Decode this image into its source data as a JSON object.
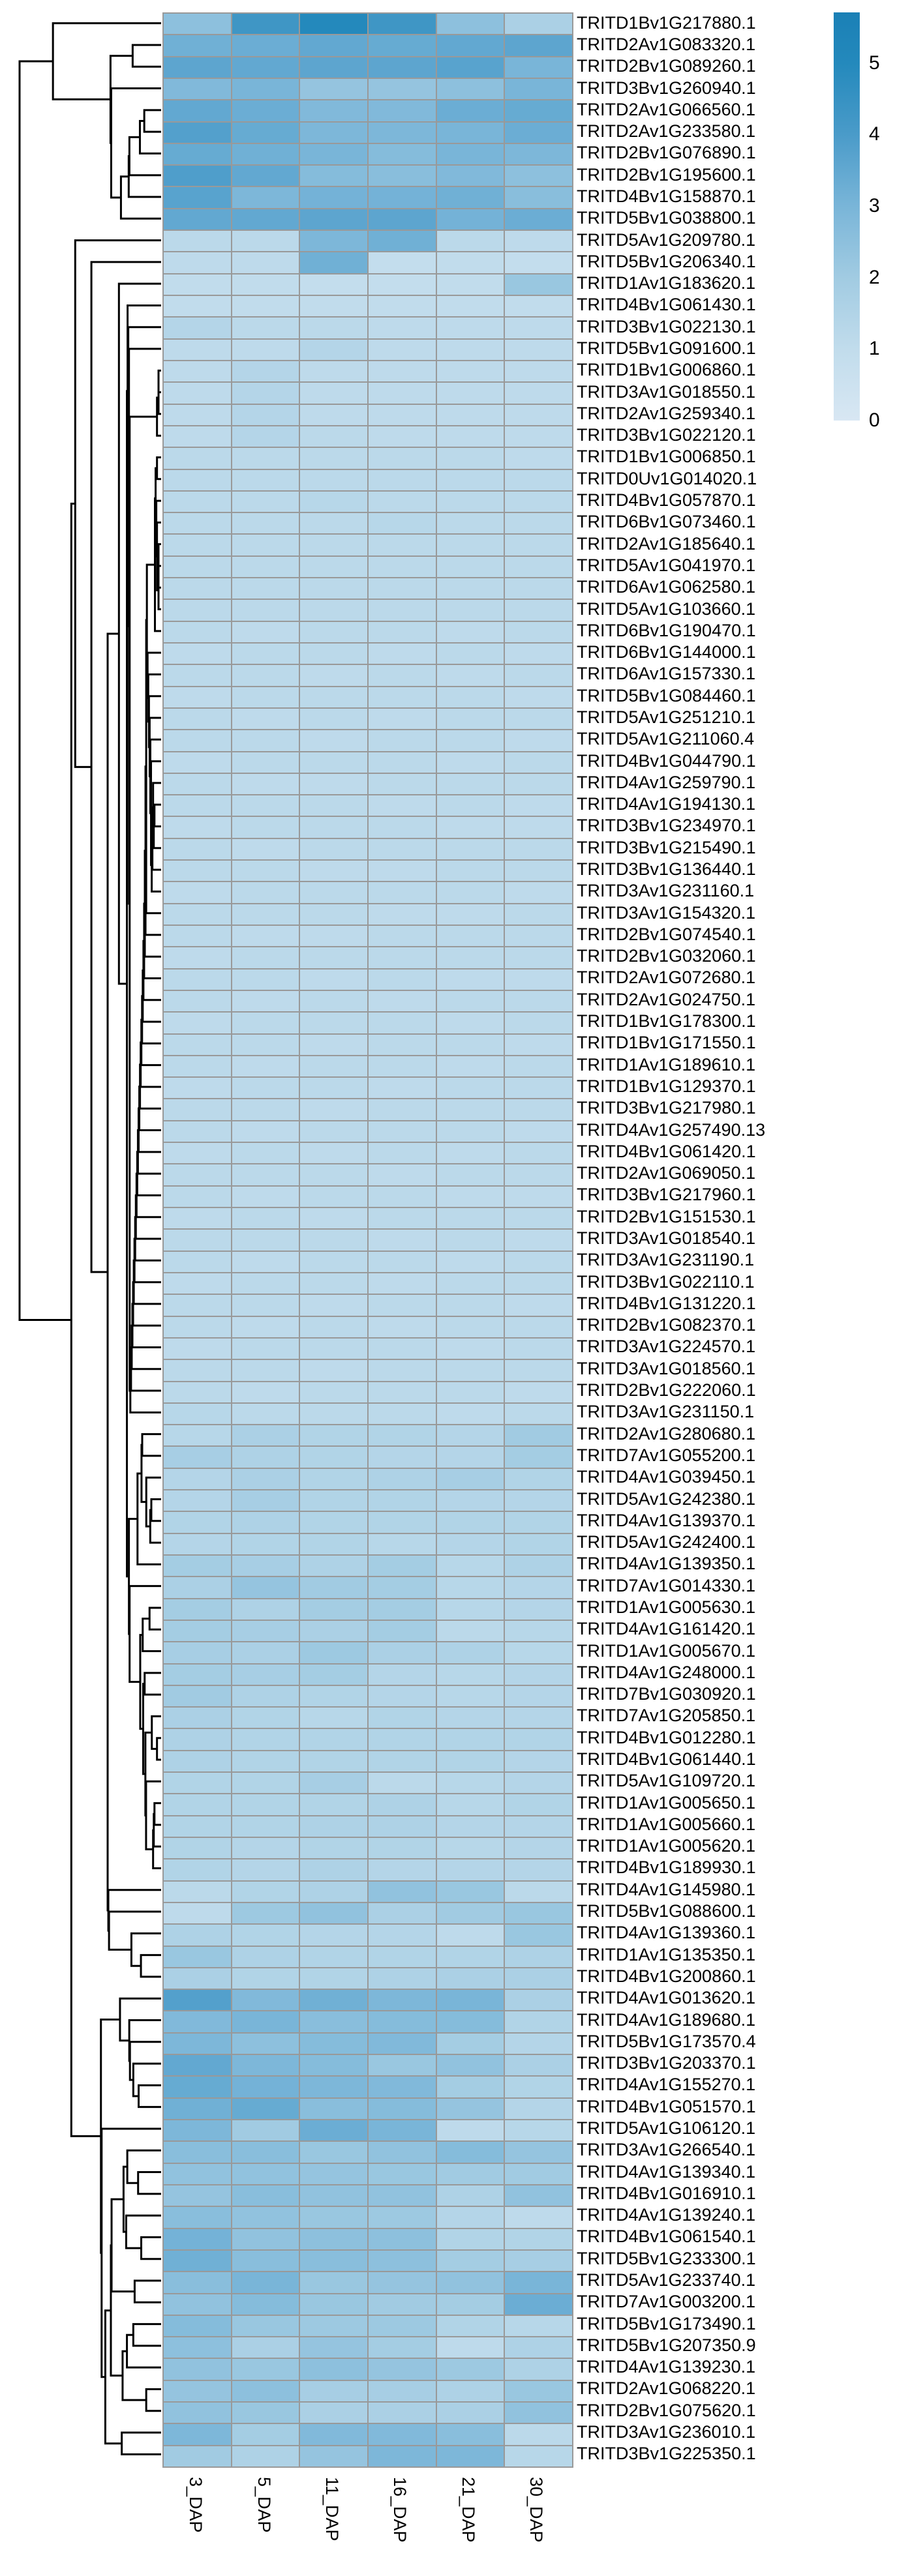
{
  "figure": {
    "kind": "seaborn-style clustermap screenshot",
    "background": "#ffffff",
    "grid_line_color": "#999999",
    "dendrogram_color": "#000000"
  },
  "chart_data": {
    "type": "heatmap",
    "title": "",
    "xlabel": "",
    "ylabel": "",
    "legend_position": "top-right",
    "x_tick_rotation": 90,
    "dendrogram_side": "left",
    "columns": [
      "3_DAP",
      "5_DAP",
      "11_DAP",
      "16_DAP",
      "21_DAP",
      "30_DAP"
    ],
    "rows": [
      "TRITD1Bv1G217880.1",
      "TRITD2Av1G083320.1",
      "TRITD2Bv1G089260.1",
      "TRITD3Bv1G260940.1",
      "TRITD2Av1G066560.1",
      "TRITD2Av1G233580.1",
      "TRITD2Bv1G076890.1",
      "TRITD2Bv1G195600.1",
      "TRITD4Bv1G158870.1",
      "TRITD5Bv1G038800.1",
      "TRITD5Av1G209780.1",
      "TRITD5Bv1G206340.1",
      "TRITD1Av1G183620.1",
      "TRITD4Bv1G061430.1",
      "TRITD3Bv1G022130.1",
      "TRITD5Bv1G091600.1",
      "TRITD1Bv1G006860.1",
      "TRITD3Av1G018550.1",
      "TRITD2Av1G259340.1",
      "TRITD3Bv1G022120.1",
      "TRITD1Bv1G006850.1",
      "TRITD0Uv1G014020.1",
      "TRITD4Bv1G057870.1",
      "TRITD6Bv1G073460.1",
      "TRITD2Av1G185640.1",
      "TRITD5Av1G041970.1",
      "TRITD6Av1G062580.1",
      "TRITD5Av1G103660.1",
      "TRITD6Bv1G190470.1",
      "TRITD6Bv1G144000.1",
      "TRITD6Av1G157330.1",
      "TRITD5Bv1G084460.1",
      "TRITD5Av1G251210.1",
      "TRITD5Av1G211060.4",
      "TRITD4Bv1G044790.1",
      "TRITD4Av1G259790.1",
      "TRITD4Av1G194130.1",
      "TRITD3Bv1G234970.1",
      "TRITD3Bv1G215490.1",
      "TRITD3Bv1G136440.1",
      "TRITD3Av1G231160.1",
      "TRITD3Av1G154320.1",
      "TRITD2Bv1G074540.1",
      "TRITD2Bv1G032060.1",
      "TRITD2Av1G072680.1",
      "TRITD2Av1G024750.1",
      "TRITD1Bv1G178300.1",
      "TRITD1Bv1G171550.1",
      "TRITD1Av1G189610.1",
      "TRITD1Bv1G129370.1",
      "TRITD3Bv1G217980.1",
      "TRITD4Av1G257490.13",
      "TRITD4Bv1G061420.1",
      "TRITD2Av1G069050.1",
      "TRITD3Bv1G217960.1",
      "TRITD2Bv1G151530.1",
      "TRITD3Av1G018540.1",
      "TRITD3Av1G231190.1",
      "TRITD3Bv1G022110.1",
      "TRITD4Bv1G131220.1",
      "TRITD2Bv1G082370.1",
      "TRITD3Av1G224570.1",
      "TRITD3Av1G018560.1",
      "TRITD2Bv1G222060.1",
      "TRITD3Av1G231150.1",
      "TRITD2Av1G280680.1",
      "TRITD7Av1G055200.1",
      "TRITD4Av1G039450.1",
      "TRITD5Av1G242380.1",
      "TRITD4Av1G139370.1",
      "TRITD5Av1G242400.1",
      "TRITD4Av1G139350.1",
      "TRITD7Av1G014330.1",
      "TRITD1Av1G005630.1",
      "TRITD4Av1G161420.1",
      "TRITD1Av1G005670.1",
      "TRITD4Av1G248000.1",
      "TRITD7Bv1G030920.1",
      "TRITD7Av1G205850.1",
      "TRITD4Bv1G012280.1",
      "TRITD4Bv1G061440.1",
      "TRITD5Av1G109720.1",
      "TRITD1Av1G005650.1",
      "TRITD1Av1G005660.1",
      "TRITD1Av1G005620.1",
      "TRITD4Bv1G189930.1",
      "TRITD4Av1G145980.1",
      "TRITD5Bv1G088600.1",
      "TRITD4Av1G139360.1",
      "TRITD1Av1G135350.1",
      "TRITD4Bv1G200860.1",
      "TRITD4Av1G013620.1",
      "TRITD4Av1G189680.1",
      "TRITD5Bv1G173570.4",
      "TRITD3Bv1G203370.1",
      "TRITD4Av1G155270.1",
      "TRITD4Bv1G051570.1",
      "TRITD5Av1G106120.1",
      "TRITD3Av1G266540.1",
      "TRITD4Av1G139340.1",
      "TRITD4Bv1G016910.1",
      "TRITD4Av1G139240.1",
      "TRITD4Bv1G061540.1",
      "TRITD5Bv1G233300.1",
      "TRITD5Av1G233740.1",
      "TRITD7Av1G003200.1",
      "TRITD5Bv1G173490.1",
      "TRITD5Bv1G207350.9",
      "TRITD4Av1G139230.1",
      "TRITD2Av1G068220.1",
      "TRITD2Bv1G075620.1",
      "TRITD3Av1G236010.1",
      "TRITD3Bv1G225350.1"
    ],
    "values": [
      [
        2.5,
        4.3,
        5.0,
        4.3,
        2.5,
        1.7
      ],
      [
        3.2,
        3.3,
        3.5,
        3.4,
        3.5,
        3.6
      ],
      [
        3.6,
        3.5,
        3.6,
        3.6,
        3.7,
        3.0
      ],
      [
        2.8,
        3.0,
        2.3,
        2.3,
        2.5,
        3.0
      ],
      [
        3.5,
        3.3,
        2.8,
        2.8,
        3.3,
        3.4
      ],
      [
        3.8,
        3.4,
        2.9,
        2.9,
        3.0,
        3.3
      ],
      [
        3.4,
        3.2,
        3.0,
        2.7,
        3.0,
        2.9
      ],
      [
        3.9,
        3.5,
        2.7,
        2.6,
        2.8,
        2.5
      ],
      [
        3.7,
        2.9,
        3.1,
        3.1,
        3.2,
        2.6
      ],
      [
        3.5,
        3.5,
        3.6,
        3.6,
        3.1,
        3.3
      ],
      [
        1.2,
        1.2,
        2.9,
        3.2,
        1.2,
        1.1
      ],
      [
        1.1,
        1.1,
        3.2,
        0.9,
        1.0,
        0.9
      ],
      [
        1.0,
        1.0,
        0.9,
        0.9,
        1.0,
        2.2
      ],
      [
        1.0,
        1.0,
        1.0,
        1.0,
        1.0,
        1.0
      ],
      [
        1.4,
        1.2,
        1.2,
        1.1,
        1.1,
        1.1
      ],
      [
        1.1,
        1.1,
        1.4,
        1.1,
        1.1,
        1.1
      ],
      [
        1.1,
        1.4,
        1.1,
        1.1,
        1.1,
        1.1
      ],
      [
        1.1,
        1.4,
        1.1,
        1.1,
        1.1,
        1.1
      ],
      [
        1.1,
        1.4,
        1.1,
        1.1,
        1.1,
        1.1
      ],
      [
        1.1,
        1.4,
        1.2,
        1.1,
        1.1,
        1.1
      ],
      [
        1.2,
        1.2,
        1.2,
        1.2,
        1.2,
        1.1
      ],
      [
        1.2,
        1.2,
        1.2,
        1.2,
        1.2,
        1.2
      ],
      [
        1.2,
        1.2,
        1.3,
        1.2,
        1.2,
        1.2
      ],
      [
        1.2,
        1.2,
        1.2,
        1.3,
        1.2,
        1.2
      ],
      [
        1.2,
        1.2,
        1.2,
        1.2,
        1.2,
        1.2
      ],
      [
        1.2,
        1.2,
        1.2,
        1.2,
        1.2,
        1.2
      ],
      [
        1.2,
        1.2,
        1.2,
        1.2,
        1.2,
        1.2
      ],
      [
        1.2,
        1.2,
        1.2,
        1.2,
        1.2,
        1.2
      ],
      [
        1.2,
        1.1,
        1.2,
        1.2,
        1.1,
        1.2
      ],
      [
        1.1,
        1.2,
        1.2,
        1.1,
        1.2,
        1.1
      ],
      [
        1.2,
        1.2,
        1.1,
        1.2,
        1.1,
        1.2
      ],
      [
        1.1,
        1.2,
        1.2,
        1.2,
        1.2,
        1.1
      ],
      [
        1.2,
        1.1,
        1.2,
        1.1,
        1.2,
        1.2
      ],
      [
        1.2,
        1.2,
        1.1,
        1.2,
        1.2,
        1.1
      ],
      [
        1.1,
        1.2,
        1.2,
        1.2,
        1.1,
        1.2
      ],
      [
        1.2,
        1.1,
        1.1,
        1.2,
        1.2,
        1.2
      ],
      [
        1.2,
        1.2,
        1.2,
        1.1,
        1.2,
        1.1
      ],
      [
        1.1,
        1.2,
        1.2,
        1.2,
        1.1,
        1.1
      ],
      [
        1.2,
        1.1,
        1.2,
        1.2,
        1.2,
        1.2
      ],
      [
        1.2,
        1.2,
        1.1,
        1.1,
        1.2,
        1.2
      ],
      [
        1.1,
        1.2,
        1.2,
        1.2,
        1.2,
        1.1
      ],
      [
        1.2,
        1.2,
        1.2,
        1.1,
        1.1,
        1.2
      ],
      [
        1.2,
        1.1,
        1.1,
        1.2,
        1.2,
        1.2
      ],
      [
        1.1,
        1.2,
        1.2,
        1.2,
        1.2,
        1.2
      ],
      [
        1.2,
        1.2,
        1.1,
        1.2,
        1.1,
        1.1
      ],
      [
        1.2,
        1.1,
        1.2,
        1.1,
        1.2,
        1.2
      ],
      [
        1.1,
        1.2,
        1.2,
        1.2,
        1.1,
        1.2
      ],
      [
        1.2,
        1.2,
        1.1,
        1.2,
        1.2,
        1.1
      ],
      [
        1.2,
        1.1,
        1.2,
        1.2,
        1.1,
        1.2
      ],
      [
        1.1,
        1.2,
        1.2,
        1.1,
        1.2,
        1.2
      ],
      [
        1.2,
        1.2,
        1.1,
        1.2,
        1.2,
        1.2
      ],
      [
        1.2,
        1.1,
        1.2,
        1.2,
        1.2,
        1.1
      ],
      [
        1.1,
        1.2,
        1.1,
        1.2,
        1.1,
        1.2
      ],
      [
        1.2,
        1.2,
        1.2,
        1.1,
        1.2,
        1.2
      ],
      [
        1.2,
        1.1,
        1.2,
        1.2,
        1.1,
        1.1
      ],
      [
        1.1,
        1.2,
        1.1,
        1.2,
        1.2,
        1.2
      ],
      [
        1.2,
        1.2,
        1.2,
        1.1,
        1.2,
        1.1
      ],
      [
        1.2,
        1.1,
        1.2,
        1.2,
        1.1,
        1.2
      ],
      [
        1.1,
        1.2,
        1.2,
        1.1,
        1.2,
        1.2
      ],
      [
        1.2,
        1.2,
        1.1,
        1.2,
        1.2,
        1.1
      ],
      [
        1.2,
        1.1,
        1.2,
        1.1,
        1.2,
        1.2
      ],
      [
        1.1,
        1.2,
        1.2,
        1.2,
        1.1,
        1.2
      ],
      [
        1.2,
        1.2,
        1.1,
        1.2,
        1.2,
        1.2
      ],
      [
        1.2,
        1.1,
        1.2,
        1.2,
        1.2,
        1.1
      ],
      [
        1.3,
        1.2,
        1.2,
        1.2,
        1.1,
        1.2
      ],
      [
        1.3,
        1.7,
        1.5,
        1.5,
        1.4,
        2.0
      ],
      [
        1.8,
        1.6,
        1.5,
        1.4,
        1.4,
        1.9
      ],
      [
        1.4,
        1.7,
        1.5,
        1.6,
        1.8,
        1.5
      ],
      [
        1.4,
        1.8,
        1.5,
        1.5,
        1.4,
        1.4
      ],
      [
        1.5,
        1.6,
        1.5,
        1.5,
        1.5,
        1.5
      ],
      [
        1.4,
        1.5,
        1.5,
        1.3,
        1.4,
        1.5
      ],
      [
        1.9,
        1.8,
        1.6,
        1.9,
        1.3,
        1.6
      ],
      [
        1.7,
        2.3,
        2.0,
        1.9,
        1.3,
        1.4
      ],
      [
        1.9,
        1.6,
        1.9,
        1.9,
        1.3,
        1.4
      ],
      [
        1.9,
        1.8,
        1.7,
        1.9,
        1.2,
        1.3
      ],
      [
        1.8,
        1.7,
        2.1,
        1.7,
        1.6,
        1.3
      ],
      [
        1.9,
        1.8,
        1.9,
        1.4,
        1.3,
        1.4
      ],
      [
        2.0,
        1.6,
        1.5,
        1.4,
        1.3,
        1.4
      ],
      [
        1.7,
        1.5,
        1.3,
        1.5,
        1.4,
        1.4
      ],
      [
        1.6,
        1.5,
        1.5,
        1.5,
        1.5,
        1.5
      ],
      [
        1.6,
        1.5,
        1.5,
        1.5,
        1.5,
        1.4
      ],
      [
        1.5,
        1.5,
        1.8,
        1.2,
        1.3,
        1.4
      ],
      [
        1.5,
        1.5,
        1.5,
        1.6,
        1.3,
        1.5
      ],
      [
        1.5,
        1.5,
        1.6,
        1.6,
        1.4,
        1.4
      ],
      [
        1.5,
        1.4,
        1.5,
        1.5,
        1.3,
        1.4
      ],
      [
        1.5,
        1.4,
        1.6,
        1.4,
        1.4,
        1.4
      ],
      [
        1.2,
        1.5,
        1.6,
        2.4,
        2.2,
        1.2
      ],
      [
        1.1,
        2.1,
        2.4,
        1.7,
        2.0,
        2.2
      ],
      [
        1.6,
        1.5,
        1.4,
        1.4,
        1.1,
        2.2
      ],
      [
        2.2,
        1.6,
        1.5,
        1.5,
        1.5,
        1.6
      ],
      [
        1.7,
        1.5,
        1.5,
        1.6,
        1.7,
        1.7
      ],
      [
        3.8,
        2.8,
        3.2,
        2.9,
        3.0,
        1.7
      ],
      [
        2.8,
        3.0,
        2.6,
        2.7,
        2.7,
        1.5
      ],
      [
        2.9,
        2.5,
        2.7,
        2.8,
        1.9,
        1.4
      ],
      [
        3.5,
        2.9,
        2.7,
        2.2,
        2.4,
        1.7
      ],
      [
        3.4,
        3.1,
        2.9,
        2.8,
        1.9,
        1.5
      ],
      [
        3.2,
        3.4,
        2.6,
        2.7,
        2.3,
        1.4
      ],
      [
        2.9,
        2.0,
        3.3,
        3.0,
        1.1,
        1.3
      ],
      [
        2.6,
        2.6,
        2.2,
        2.4,
        2.7,
        2.3
      ],
      [
        2.4,
        2.4,
        2.3,
        2.2,
        2.0,
        2.0
      ],
      [
        2.3,
        2.6,
        2.4,
        2.4,
        1.6,
        2.4
      ],
      [
        2.6,
        2.4,
        2.2,
        2.1,
        1.4,
        1.1
      ],
      [
        3.1,
        2.4,
        2.5,
        2.5,
        1.5,
        1.5
      ],
      [
        3.2,
        2.6,
        2.6,
        2.5,
        1.9,
        1.8
      ],
      [
        2.6,
        3.0,
        2.2,
        2.3,
        2.4,
        3.0
      ],
      [
        2.4,
        2.7,
        2.2,
        2.0,
        1.9,
        3.3
      ],
      [
        2.7,
        2.2,
        2.1,
        2.1,
        1.5,
        1.3
      ],
      [
        2.5,
        1.7,
        2.3,
        1.9,
        1.1,
        1.6
      ],
      [
        2.4,
        2.2,
        2.5,
        2.3,
        2.1,
        1.6
      ],
      [
        2.3,
        2.5,
        1.8,
        1.8,
        1.6,
        2.2
      ],
      [
        2.4,
        2.2,
        1.7,
        1.7,
        1.7,
        2.4
      ],
      [
        2.9,
        1.9,
        2.8,
        2.8,
        2.6,
        1.2
      ],
      [
        2.0,
        1.6,
        2.3,
        2.9,
        2.9,
        1.3
      ]
    ],
    "colorbar": {
      "colormap": "Blues",
      "vmin": 0,
      "vmax": 5.71,
      "ticks": [
        "5",
        "4",
        "3",
        "2",
        "1",
        "0"
      ],
      "tick_values": [
        5,
        4,
        3,
        2,
        1,
        0
      ]
    },
    "color_stops": [
      {
        "v": 0.0,
        "c": "#d8e7f3"
      },
      {
        "v": 1.0,
        "c": "#c1dcec"
      },
      {
        "v": 2.0,
        "c": "#a1cbe2"
      },
      {
        "v": 3.0,
        "c": "#79b5d8"
      },
      {
        "v": 4.0,
        "c": "#4a9bc9"
      },
      {
        "v": 5.0,
        "c": "#2489bc"
      },
      {
        "v": 5.71,
        "c": "#1a80b6"
      }
    ]
  }
}
